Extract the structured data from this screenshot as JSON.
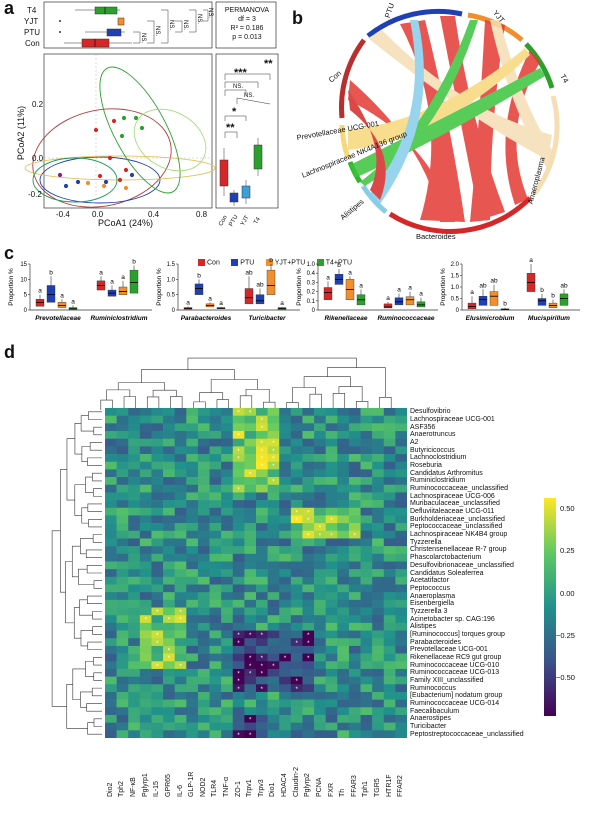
{
  "panels": {
    "a": "a",
    "b": "b",
    "c": "c",
    "d": "d"
  },
  "panel_a": {
    "group_labels": [
      "T4",
      "YJT",
      "PTU",
      "Con"
    ],
    "ns_labels": [
      "NS.",
      "NS.",
      "NS.",
      "NS.",
      "NS.",
      "NS."
    ],
    "stats": {
      "line1": "PERMANOVA",
      "line2": "df = 3",
      "line3": "R² = 0.186",
      "line4": "p = 0.013"
    },
    "xlabel": "PCoA1 (24%)",
    "ylabel": "PCoA2 (11%)",
    "xticks": [
      "-0.4",
      "0.0",
      "0.4",
      "0.8"
    ],
    "yticks": [
      "0.2",
      "0.0",
      "-0.2"
    ],
    "right_sig": [
      "**",
      "***",
      "NS.",
      "NS.",
      "*",
      "**"
    ],
    "right_xticks": [
      "Con",
      "PTU",
      "YJT",
      "T4"
    ],
    "group_colors": {
      "Con": "#d62728",
      "PTU": "#1f3fb4",
      "YJT": "#f28e2b",
      "T4": "#2ca02c",
      "extra": "#8c1c8c"
    }
  },
  "panel_b": {
    "labels": {
      "ptu": "PTU",
      "yjt": "YJT",
      "t4": "T4",
      "con": "Con",
      "prev": "Prevotellaceae UCG-001",
      "lach": "Lachnospiraceae NK4A136 group",
      "ana": "Anaeroplasma",
      "ali": "Alistipes",
      "bac": "Bacteroides"
    }
  },
  "panel_c": {
    "legend": [
      {
        "name": "Con",
        "color": "#d62728"
      },
      {
        "name": "PTU",
        "color": "#1f3fb4"
      },
      {
        "name": "YJT+PTU",
        "color": "#f28e2b"
      },
      {
        "name": "T4+PTU",
        "color": "#2ca02c"
      }
    ],
    "ylabel": "Proportion %",
    "subplots": [
      {
        "yticks": [
          "15",
          "10",
          "5",
          "0"
        ],
        "taxa": [
          "Prevotellaceae",
          "Ruminiclostridium"
        ],
        "groups": [
          {
            "letters": [
              "a",
              "b",
              "a",
              "a"
            ],
            "medians": [
              2.5,
              5.0,
              1.5,
              0.4
            ],
            "q1": [
              1.2,
              2.5,
              0.8,
              0.2
            ],
            "q3": [
              3.5,
              8.0,
              2.5,
              0.8
            ],
            "max": [
              5,
              11,
              3.5,
              1.5
            ]
          },
          {
            "letters": [
              "a",
              "a",
              "a",
              "b"
            ],
            "medians": [
              8.0,
              5.5,
              6.0,
              9.0
            ],
            "q1": [
              6.5,
              4.5,
              5.0,
              5.5
            ],
            "q3": [
              9.5,
              6.5,
              7.5,
              13
            ],
            "max": [
              11,
              8,
              9.5,
              14.5
            ]
          }
        ]
      },
      {
        "yticks": [
          "1.5",
          "1.0",
          "0.5",
          "0"
        ],
        "taxa": [
          "Parabacteroides",
          "Turicibacter"
        ],
        "groups": [
          {
            "letters": [
              "a",
              "b",
              "a",
              "a"
            ],
            "medians": [
              0.05,
              0.7,
              0.15,
              0.06
            ],
            "q1": [
              0.03,
              0.5,
              0.1,
              0.04
            ],
            "q3": [
              0.08,
              0.85,
              0.2,
              0.08
            ],
            "max": [
              0.12,
              1.0,
              0.25,
              0.1
            ]
          },
          {
            "letters": [
              "ab",
              "ab",
              "b",
              "a"
            ],
            "medians": [
              0.4,
              0.3,
              0.8,
              0.05
            ],
            "q1": [
              0.2,
              0.2,
              0.5,
              0.02
            ],
            "q3": [
              0.7,
              0.5,
              1.3,
              0.08
            ],
            "max": [
              1.1,
              0.7,
              1.5,
              0.1
            ]
          }
        ]
      },
      {
        "yticks": [
          "1.0",
          "0.4",
          "0.3",
          "0.2",
          "0.1",
          "0"
        ],
        "taxa": [
          "Rikenellaceae",
          "Ruminococcaceae"
        ],
        "groups": [
          {
            "letters": [
              "a",
              "b",
              "a",
              "a"
            ],
            "medians": [
              0.17,
              0.3,
              0.2,
              0.1
            ],
            "q1": [
              0.1,
              0.25,
              0.1,
              0.05
            ],
            "q3": [
              0.22,
              0.35,
              0.3,
              0.15
            ],
            "max": [
              0.28,
              0.4,
              0.33,
              0.2
            ]
          },
          {
            "letters": [
              "a",
              "a",
              "a",
              "a"
            ],
            "medians": [
              0.03,
              0.08,
              0.1,
              0.05
            ],
            "q1": [
              0.02,
              0.05,
              0.05,
              0.03
            ],
            "q3": [
              0.06,
              0.12,
              0.13,
              0.08
            ],
            "max": [
              0.08,
              0.16,
              0.18,
              0.12
            ]
          }
        ]
      },
      {
        "yticks": [
          "2.0",
          "1.5",
          "1.0",
          "0.5",
          "0"
        ],
        "taxa": [
          "Elusimicrobium",
          "Mucispirillum"
        ],
        "groups": [
          {
            "letters": [
              "a",
              "ab",
              "ab",
              "b"
            ],
            "medians": [
              0.15,
              0.45,
              0.6,
              0.03
            ],
            "q1": [
              0.05,
              0.2,
              0.2,
              0.01
            ],
            "q3": [
              0.3,
              0.6,
              0.8,
              0.05
            ],
            "max": [
              0.6,
              0.9,
              1.1,
              0.1
            ]
          },
          {
            "letters": [
              "a",
              "b",
              "b",
              "ab"
            ],
            "medians": [
              1.2,
              0.4,
              0.2,
              0.5
            ],
            "q1": [
              0.8,
              0.2,
              0.1,
              0.2
            ],
            "q3": [
              1.6,
              0.5,
              0.3,
              0.7
            ],
            "max": [
              2.0,
              0.7,
              0.45,
              0.9
            ]
          }
        ]
      }
    ]
  },
  "panel_d": {
    "rows": [
      "Desulfovibrio",
      "Lachnospiraceae UCG-001",
      "ASF356",
      "Anaerotruncus",
      "A2",
      "Butyricicoccus",
      "Lachnoclostridium",
      "Roseburia",
      "Candidatus Arthromitus",
      "Ruminiclostridium",
      "Ruminococcaceae_unclassified",
      "Lachnospiraceae UCG-006",
      "Muribaculaceae_unclassified",
      "Defluviitaleaceae UCG-011",
      "Burkholderiaceae_unclassified",
      "Peptococcaceae_unclassified",
      "Lachnospiraceae NK4B4 group",
      "Tyzzerella",
      "Christensenellaceae R-7 group",
      "Phascolarctobacterium",
      "Desulfovibrionaceae_unclassified",
      "Candidatus Soleaferrea",
      "Acetatifactor",
      "Peptococcus",
      "Anaeroplasma",
      "Eisenbergiella",
      "Tyzzerella 3",
      "Acinetobacter sp. CAG:196",
      "Alistipes",
      "[Ruminococcus] torques group",
      "Parabacteroides",
      "Prevotellaceae UCG-001",
      "Rikenellaceae RC9 gut group",
      "Ruminococcaceae UCG-010",
      "Ruminococcaceae UCG-013",
      "Family XIII_unclassified",
      "Ruminococcus",
      "[Eubacterium] nodatum group",
      "Ruminococcaceae UCG-014",
      "Faecalibaculum",
      "Anaerostipes",
      "Turicibacter",
      "Peptostreptococcaceae_unclassified"
    ],
    "cols": [
      "Dio2",
      "Tph2",
      "NF-κB",
      "Pglyrp1",
      "IL-15",
      "GPR65",
      "IL-6",
      "GLP-1R",
      "NOD2",
      "TLR4",
      "TNF-α",
      "ZO-1",
      "Trpv1",
      "Trpv3",
      "Dio1",
      "HDAC4",
      "Claudin-2",
      "Pglyrp2",
      "PCNA",
      "FXR",
      "Th",
      "FFAR3",
      "Tph1",
      "TGR5",
      "HTR1F",
      "FFAR2"
    ],
    "colorbar": {
      "ticks": [
        "0.50",
        "0.25",
        "0.00",
        "−0.25",
        "−0.50"
      ]
    }
  }
}
